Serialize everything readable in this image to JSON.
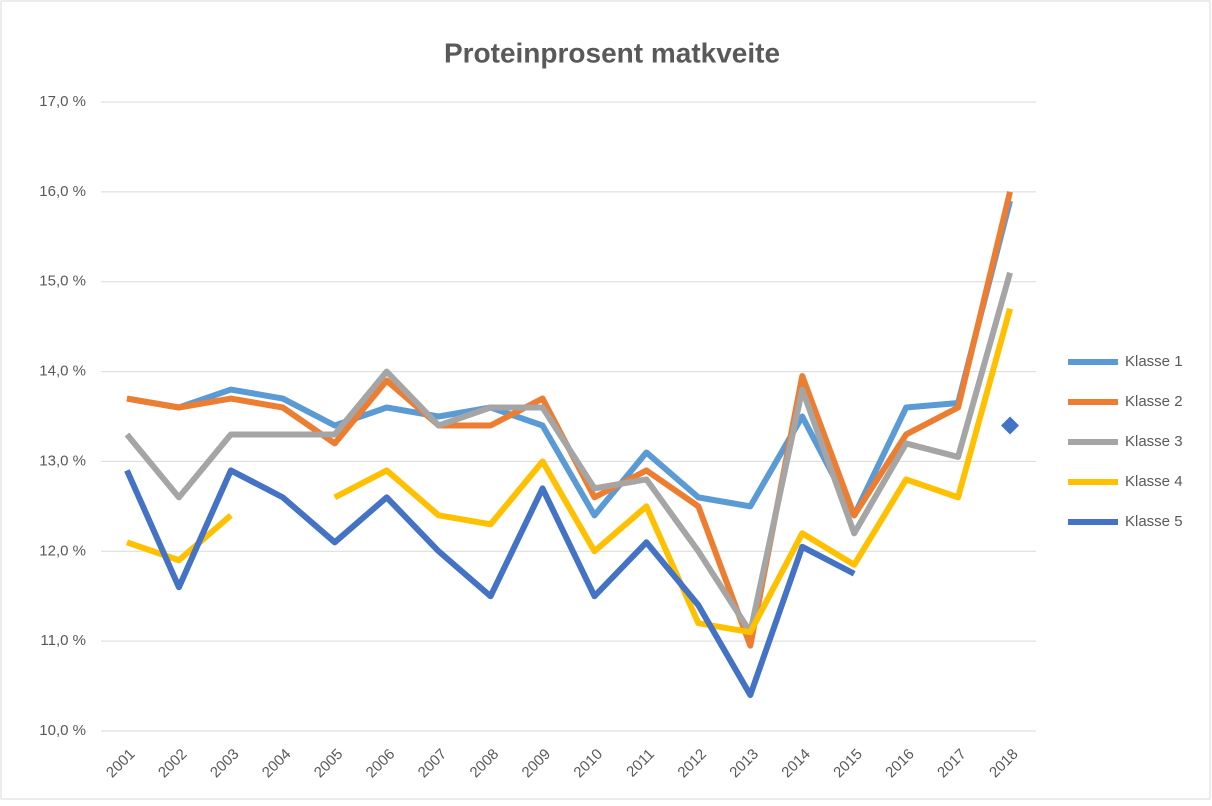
{
  "chart_data": {
    "type": "line",
    "title": "Proteinprosent  matkveite",
    "categories": [
      "2001",
      "2002",
      "2003",
      "2004",
      "2005",
      "2006",
      "2007",
      "2008",
      "2009",
      "2010",
      "2011",
      "2012",
      "2013",
      "2014",
      "2015",
      "2016",
      "2017",
      "2018"
    ],
    "series": [
      {
        "name": "Klasse 1",
        "color": "#5b9bd5",
        "values": [
          13.7,
          13.6,
          13.8,
          13.7,
          13.4,
          13.6,
          13.5,
          13.6,
          13.4,
          12.4,
          13.1,
          12.6,
          12.5,
          13.5,
          12.4,
          13.6,
          13.65,
          15.9
        ]
      },
      {
        "name": "Klasse 2",
        "color": "#ed7d31",
        "values": [
          13.7,
          13.6,
          13.7,
          13.6,
          13.2,
          13.9,
          13.4,
          13.4,
          13.7,
          12.6,
          12.9,
          12.5,
          10.95,
          13.95,
          12.4,
          13.3,
          13.6,
          16.0
        ]
      },
      {
        "name": "Klasse 3",
        "color": "#a5a5a5",
        "values": [
          13.3,
          12.6,
          13.3,
          13.3,
          13.3,
          14.0,
          13.4,
          13.6,
          13.6,
          12.7,
          12.8,
          12.0,
          11.1,
          13.8,
          12.2,
          13.2,
          13.05,
          15.1
        ]
      },
      {
        "name": "Klasse 4",
        "color": "#ffc000",
        "values": [
          12.1,
          11.9,
          12.4,
          null,
          12.6,
          12.9,
          12.4,
          12.3,
          13.0,
          12.0,
          12.5,
          11.2,
          11.1,
          12.2,
          11.85,
          12.8,
          12.6,
          14.7
        ]
      },
      {
        "name": "Klasse 5",
        "color": "#4472c4",
        "values": [
          12.9,
          11.6,
          12.9,
          12.6,
          12.1,
          12.6,
          12.0,
          11.5,
          12.7,
          11.5,
          12.1,
          11.4,
          10.4,
          12.05,
          11.75,
          null,
          null,
          13.4
        ]
      }
    ],
    "ylim": [
      10,
      17
    ],
    "yticks": [
      {
        "value": 10,
        "label": "10,0 %"
      },
      {
        "value": 11,
        "label": "11,0 %"
      },
      {
        "value": 12,
        "label": "12,0 %"
      },
      {
        "value": 13,
        "label": "13,0 %"
      },
      {
        "value": 14,
        "label": "14,0 %"
      },
      {
        "value": 15,
        "label": "15,0 %"
      },
      {
        "value": 16,
        "label": "16,0 %"
      },
      {
        "value": 17,
        "label": "17,0 %"
      }
    ],
    "grid": true,
    "legend": "right"
  }
}
